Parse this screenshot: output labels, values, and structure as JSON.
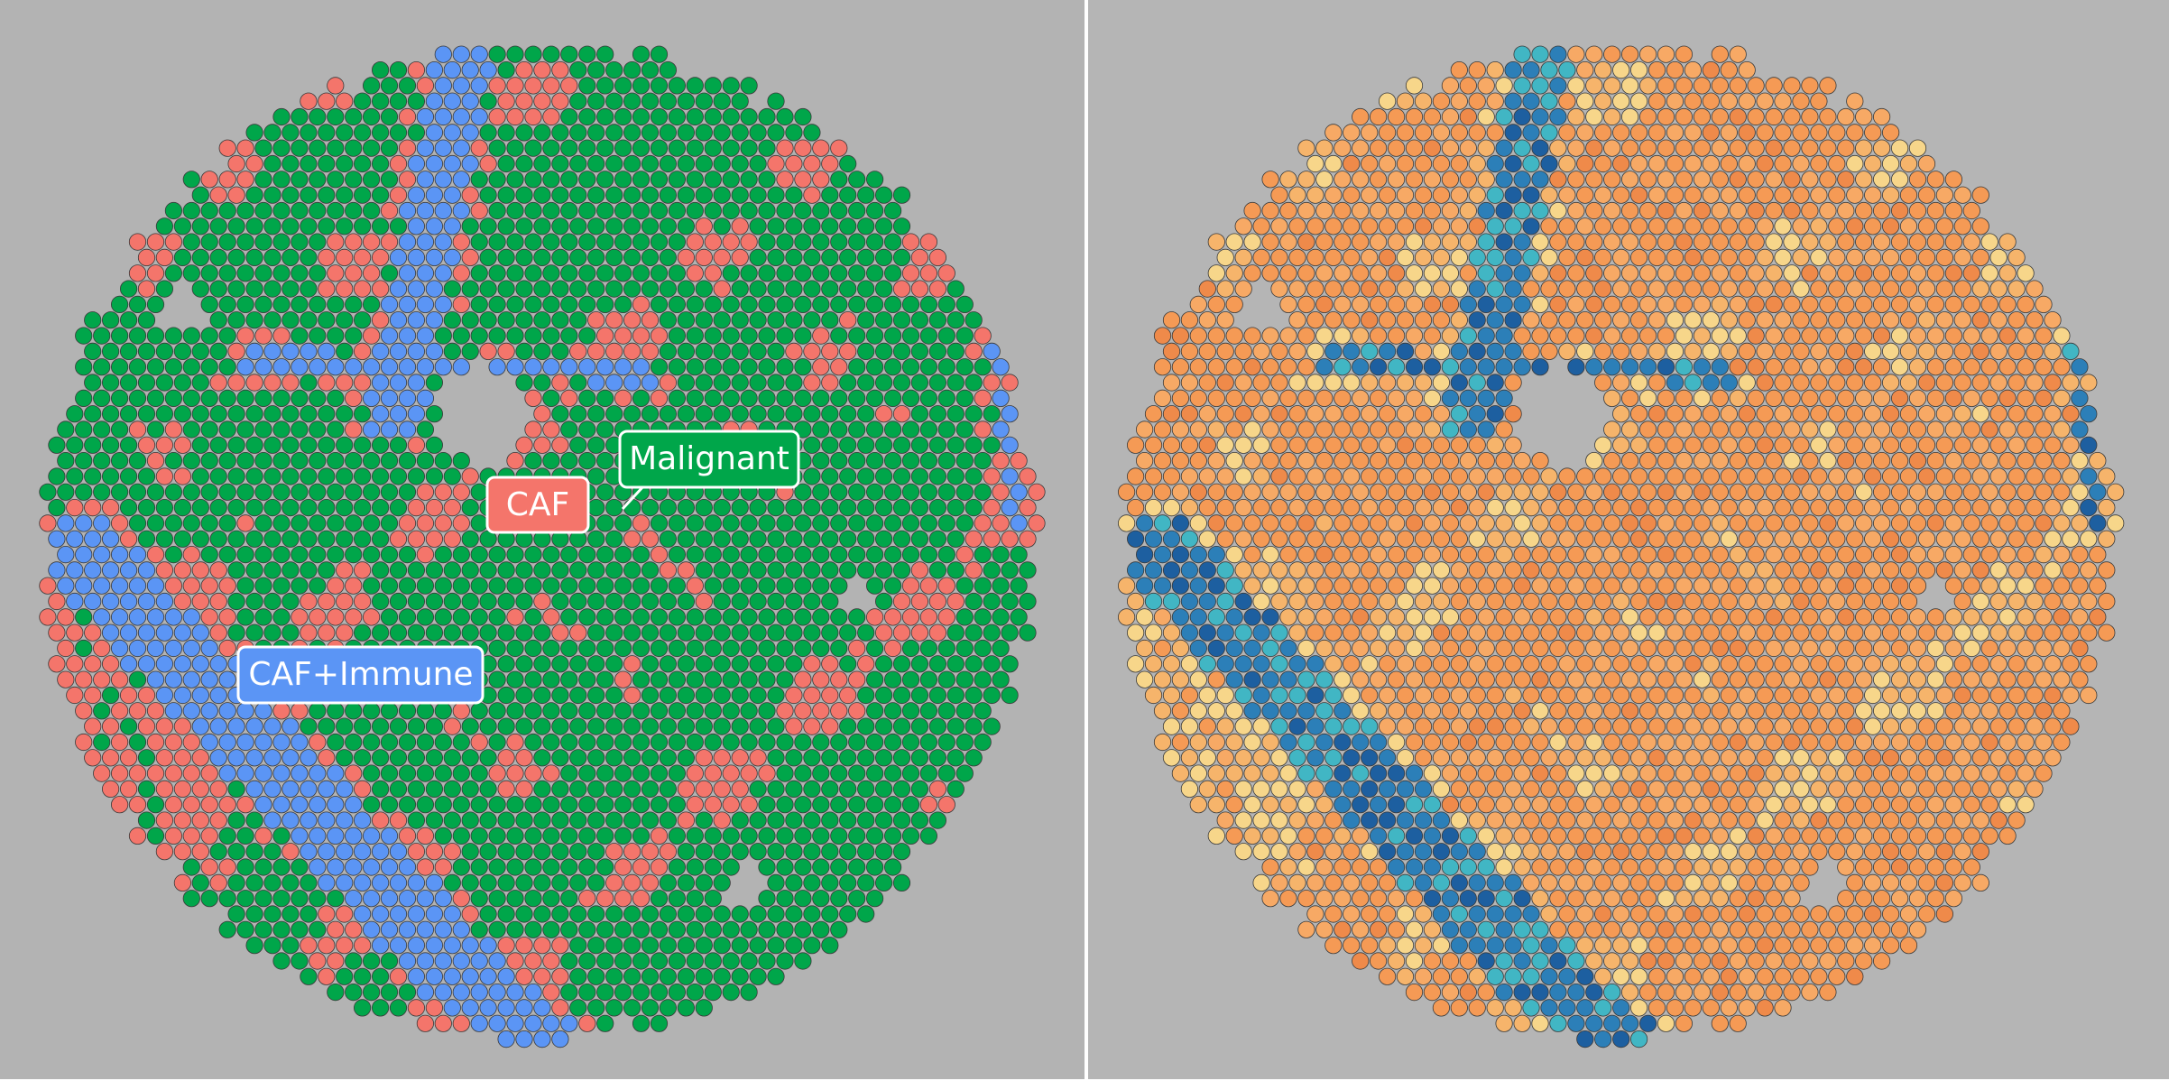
{
  "annotations": [
    "Malignant",
    "CAF",
    "CAF+Immune"
  ]
}
